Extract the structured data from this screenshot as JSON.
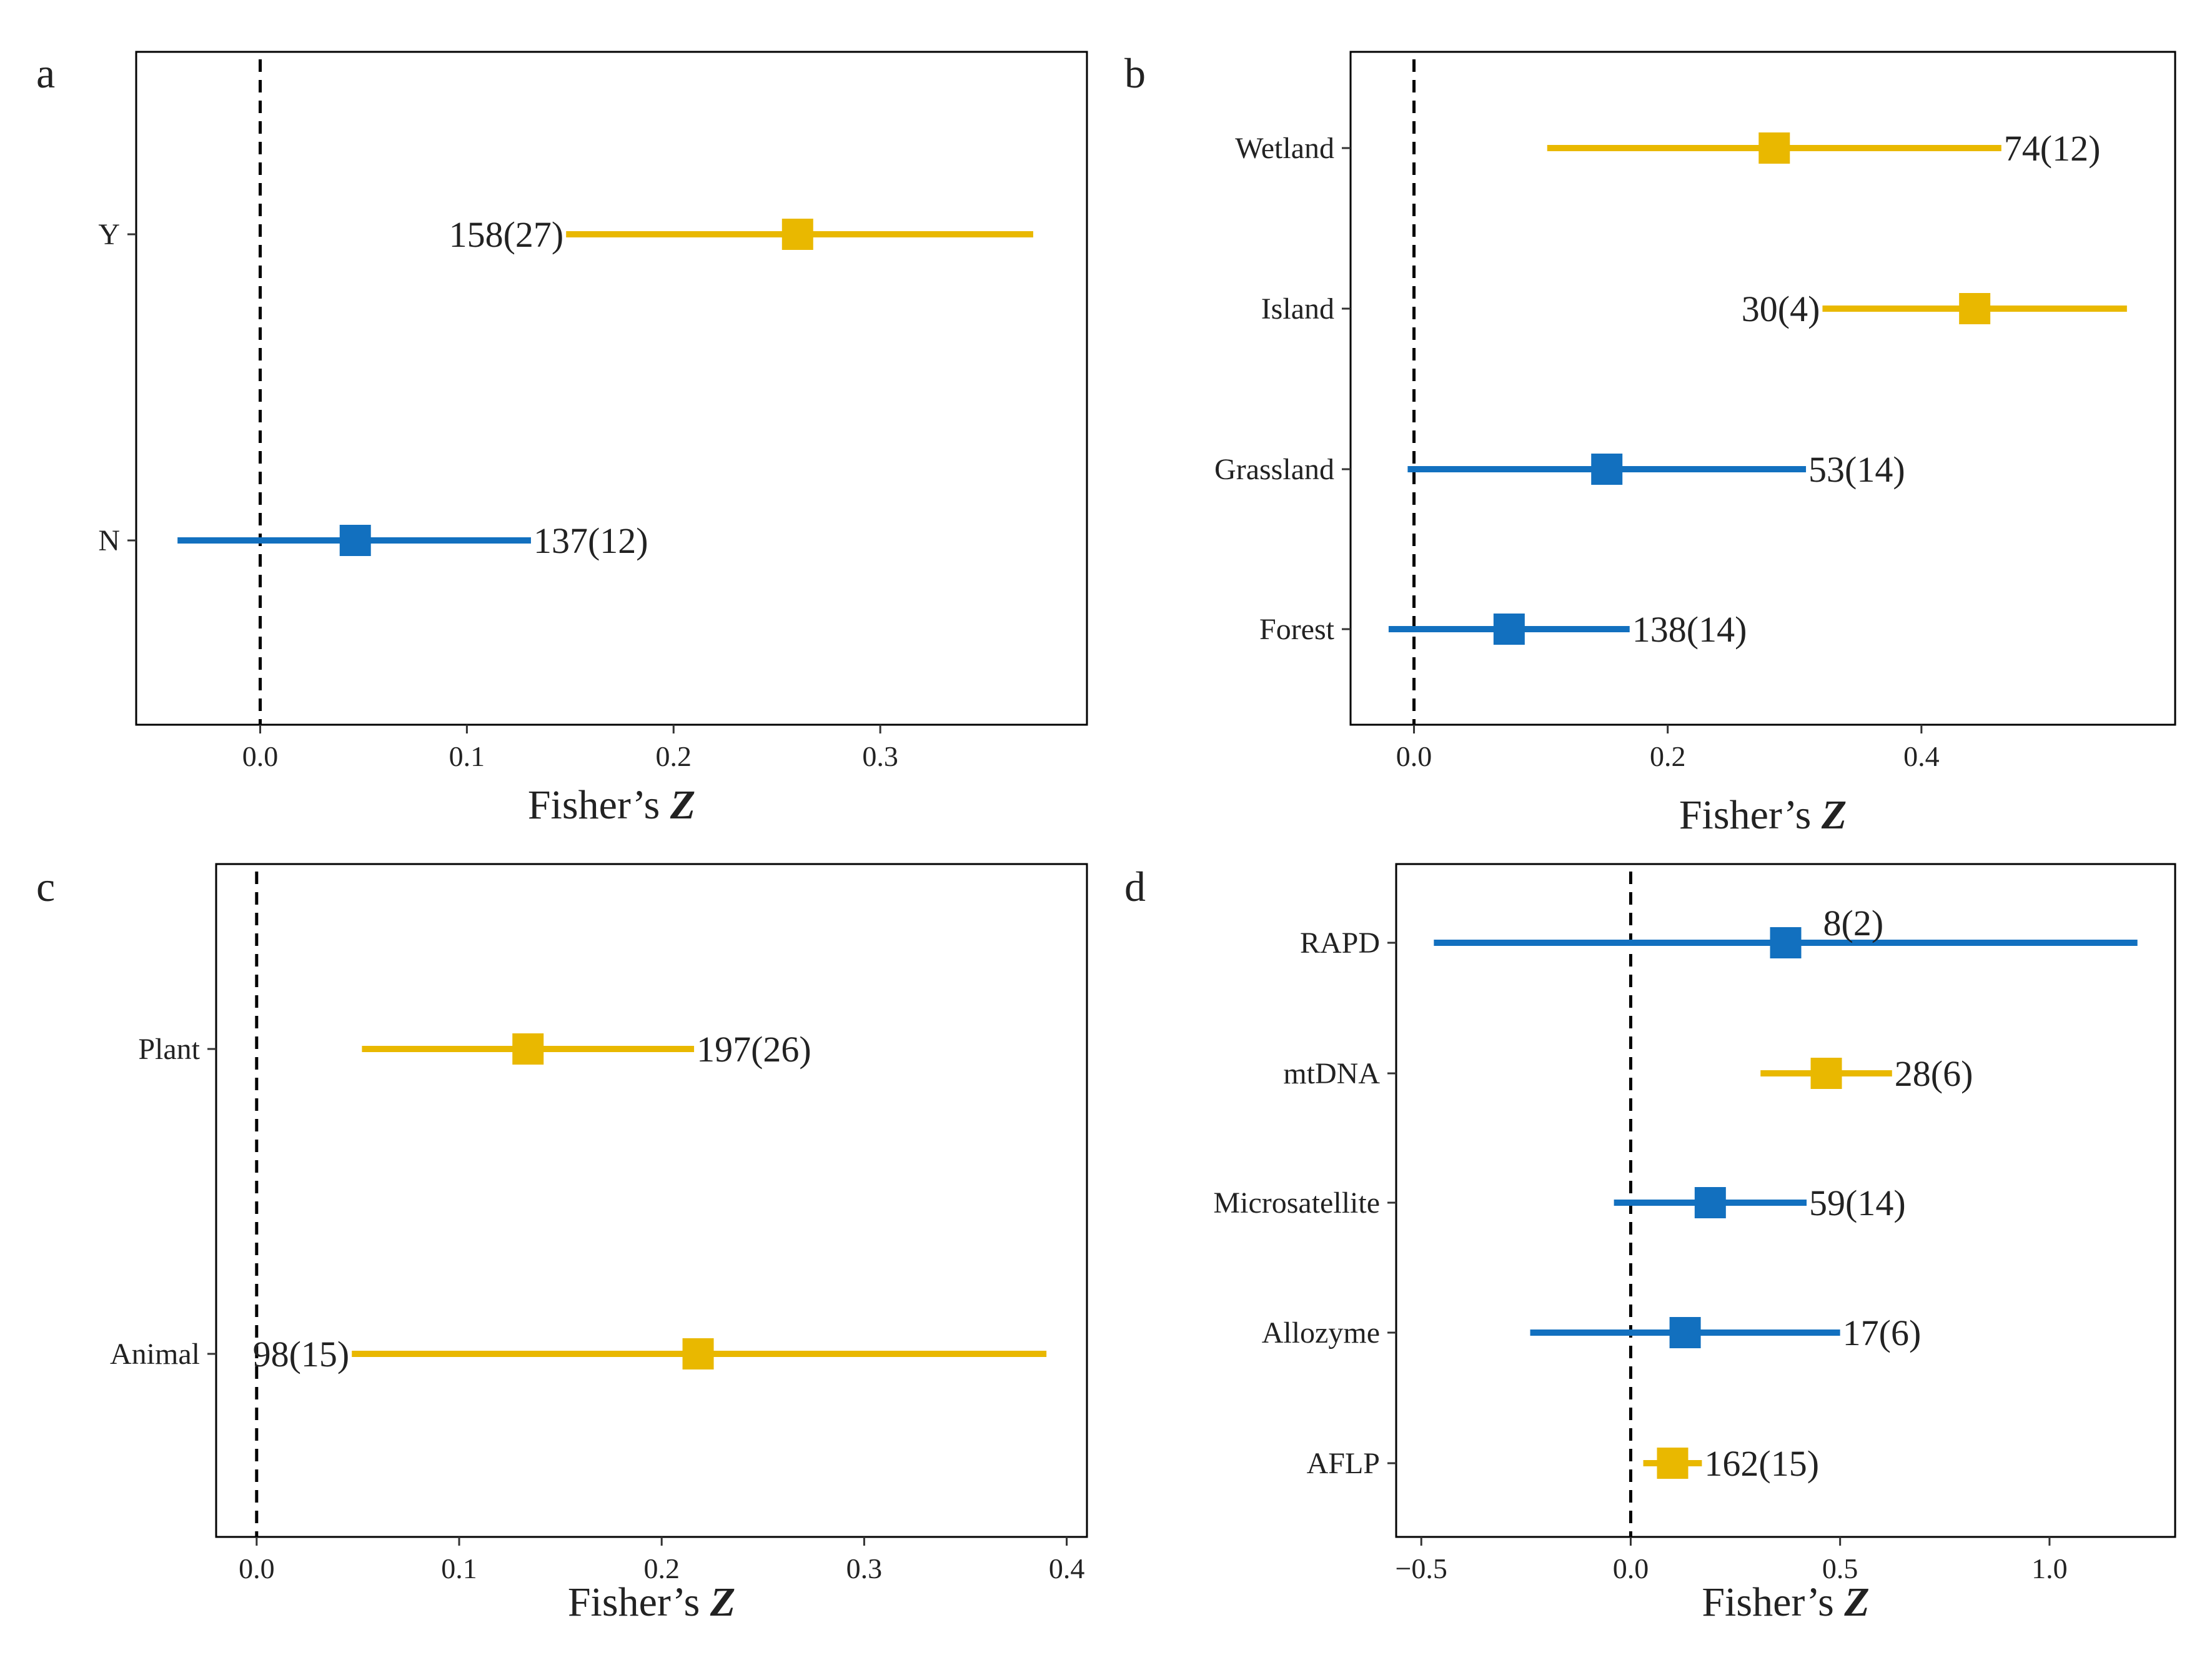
{
  "figure": {
    "colors": {
      "significant": "#E9B800",
      "nonsignificant": "#1270BF",
      "refline": "#000000",
      "frame": "#000000"
    }
  },
  "chart_data": [
    {
      "panel": "a",
      "type": "forest",
      "xlabel_prefix": "Fisher’s ",
      "xlabel_var": "Z",
      "xlim": [
        -0.06,
        0.4
      ],
      "xticks": [
        0.0,
        0.1,
        0.2,
        0.3
      ],
      "xtick_labels": [
        "0.0",
        "0.1",
        "0.2",
        "0.3"
      ],
      "refline": 0,
      "rows": [
        {
          "label": "Y",
          "mean": 0.26,
          "low": 0.148,
          "high": 0.374,
          "annotation": "158(27)",
          "annotation_side": "left",
          "group": "significant"
        },
        {
          "label": "N",
          "mean": 0.046,
          "low": -0.04,
          "high": 0.131,
          "annotation": "137(12)",
          "annotation_side": "right",
          "group": "nonsignificant"
        }
      ]
    },
    {
      "panel": "b",
      "type": "forest",
      "xlabel_prefix": "Fisher’s ",
      "xlabel_var": "Z",
      "xlim": [
        -0.05,
        0.6
      ],
      "xticks": [
        0.0,
        0.2,
        0.4
      ],
      "xtick_labels": [
        "0.0",
        "0.2",
        "0.4"
      ],
      "refline": 0,
      "rows": [
        {
          "label": "Wetland",
          "mean": 0.284,
          "low": 0.105,
          "high": 0.463,
          "annotation": "74(12)",
          "annotation_side": "right",
          "group": "significant"
        },
        {
          "label": "Island",
          "mean": 0.442,
          "low": 0.322,
          "high": 0.562,
          "annotation": "30(4)",
          "annotation_side": "left",
          "group": "significant"
        },
        {
          "label": "Grassland",
          "mean": 0.152,
          "low": -0.005,
          "high": 0.309,
          "annotation": "53(14)",
          "annotation_side": "right",
          "group": "nonsignificant"
        },
        {
          "label": "Forest",
          "mean": 0.075,
          "low": -0.02,
          "high": 0.17,
          "annotation": "138(14)",
          "annotation_side": "right",
          "group": "nonsignificant"
        }
      ]
    },
    {
      "panel": "c",
      "type": "forest",
      "xlabel_prefix": "Fisher’s ",
      "xlabel_var": "Z",
      "xlim": [
        -0.02,
        0.41
      ],
      "xticks": [
        0.0,
        0.1,
        0.2,
        0.3,
        0.4
      ],
      "xtick_labels": [
        "0.0",
        "0.1",
        "0.2",
        "0.3",
        "0.4"
      ],
      "refline": 0,
      "rows": [
        {
          "label": "Plant",
          "mean": 0.134,
          "low": 0.052,
          "high": 0.216,
          "annotation": "197(26)",
          "annotation_side": "right",
          "group": "significant"
        },
        {
          "label": "Animal",
          "mean": 0.218,
          "low": 0.047,
          "high": 0.39,
          "annotation": "98(15)",
          "annotation_side": "left",
          "group": "significant"
        }
      ]
    },
    {
      "panel": "d",
      "type": "forest",
      "xlabel_prefix": "Fisher’s ",
      "xlabel_var": "Z",
      "xlim": [
        -0.56,
        1.3
      ],
      "xticks": [
        -0.5,
        0.0,
        0.5,
        1.0
      ],
      "xtick_labels": [
        "−0.5",
        "0.0",
        "0.5",
        "1.0"
      ],
      "refline": 0,
      "rows": [
        {
          "label": "RAPD",
          "mean": 0.37,
          "low": -0.47,
          "high": 1.21,
          "annotation": "8(2)",
          "annotation_side": "above",
          "group": "nonsignificant"
        },
        {
          "label": "mtDNA",
          "mean": 0.467,
          "low": 0.31,
          "high": 0.624,
          "annotation": "28(6)",
          "annotation_side": "right",
          "group": "significant"
        },
        {
          "label": "Microsatellite",
          "mean": 0.19,
          "low": -0.04,
          "high": 0.42,
          "annotation": "59(14)",
          "annotation_side": "right",
          "group": "nonsignificant"
        },
        {
          "label": "Allozyme",
          "mean": 0.13,
          "low": -0.24,
          "high": 0.5,
          "annotation": "17(6)",
          "annotation_side": "right",
          "group": "nonsignificant"
        },
        {
          "label": "AFLP",
          "mean": 0.1,
          "low": 0.03,
          "high": 0.17,
          "annotation": "162(15)",
          "annotation_side": "right",
          "group": "significant"
        }
      ]
    }
  ]
}
